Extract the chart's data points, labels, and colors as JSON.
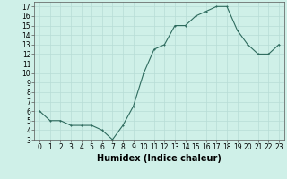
{
  "x": [
    0,
    1,
    2,
    3,
    4,
    5,
    6,
    7,
    8,
    9,
    10,
    11,
    12,
    13,
    14,
    15,
    16,
    17,
    18,
    19,
    20,
    21,
    22,
    23
  ],
  "y": [
    6,
    5,
    5,
    4.5,
    4.5,
    4.5,
    4,
    3,
    4.5,
    6.5,
    10,
    12.5,
    13,
    15,
    15,
    16,
    16.5,
    17,
    17,
    14.5,
    13,
    12,
    12,
    13
  ],
  "line_color": "#2e6b5e",
  "marker_color": "#2e6b5e",
  "bg_color": "#cff0e8",
  "grid_color": "#b8ddd6",
  "xlabel": "Humidex (Indice chaleur)",
  "xlim": [
    -0.5,
    23.5
  ],
  "ylim": [
    3,
    17.5
  ],
  "yticks": [
    3,
    4,
    5,
    6,
    7,
    8,
    9,
    10,
    11,
    12,
    13,
    14,
    15,
    16,
    17
  ],
  "xticks": [
    0,
    1,
    2,
    3,
    4,
    5,
    6,
    7,
    8,
    9,
    10,
    11,
    12,
    13,
    14,
    15,
    16,
    17,
    18,
    19,
    20,
    21,
    22,
    23
  ],
  "tick_label_fontsize": 5.5,
  "xlabel_fontsize": 7,
  "linewidth": 0.8,
  "markersize": 2.0
}
